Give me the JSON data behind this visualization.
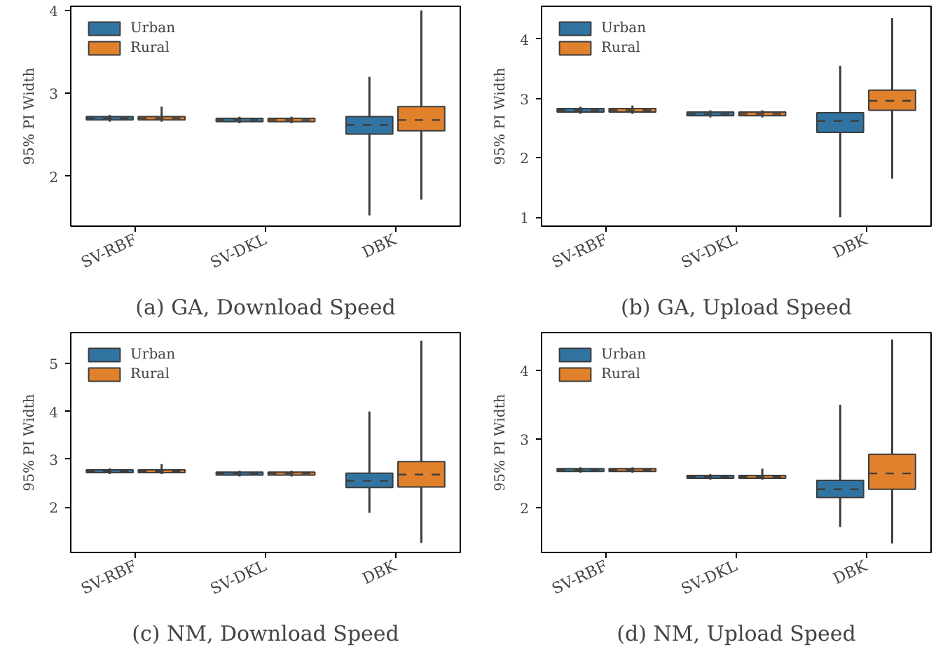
{
  "chart_data": [
    {
      "type": "box",
      "title": "(a) GA, Download Speed",
      "ylabel": "95% PI Width",
      "categories": [
        "SV-RBF",
        "SV-DKL",
        "DBK"
      ],
      "ylim": [
        1.4,
        4.05
      ],
      "yticks": [
        2,
        3,
        4
      ],
      "legend": "top left",
      "grid": false,
      "series": [
        {
          "name": "Urban",
          "color": "#3274a1",
          "boxes": [
            {
              "low": 2.66,
              "q1": 2.68,
              "median": 2.7,
              "q3": 2.72,
              "high": 2.74
            },
            {
              "low": 2.64,
              "q1": 2.66,
              "median": 2.68,
              "q3": 2.7,
              "high": 2.72
            },
            {
              "low": 1.53,
              "q1": 2.51,
              "median": 2.62,
              "q3": 2.72,
              "high": 3.2
            }
          ]
        },
        {
          "name": "Rural",
          "color": "#e1812c",
          "boxes": [
            {
              "low": 2.66,
              "q1": 2.68,
              "median": 2.7,
              "q3": 2.72,
              "high": 2.84
            },
            {
              "low": 2.64,
              "q1": 2.66,
              "median": 2.68,
              "q3": 2.7,
              "high": 2.72
            },
            {
              "low": 1.72,
              "q1": 2.55,
              "median": 2.68,
              "q3": 2.84,
              "high": 4.0
            }
          ]
        }
      ]
    },
    {
      "type": "box",
      "title": "(b) GA, Upload Speed",
      "ylabel": "95% PI Width",
      "categories": [
        "SV-RBF",
        "SV-DKL",
        "DBK"
      ],
      "ylim": [
        0.85,
        4.55
      ],
      "yticks": [
        1,
        2,
        3,
        4
      ],
      "legend": "top left",
      "grid": false,
      "series": [
        {
          "name": "Urban",
          "color": "#3274a1",
          "boxes": [
            {
              "low": 2.74,
              "q1": 2.77,
              "median": 2.8,
              "q3": 2.83,
              "high": 2.86
            },
            {
              "low": 2.68,
              "q1": 2.71,
              "median": 2.74,
              "q3": 2.77,
              "high": 2.8
            },
            {
              "low": 1.0,
              "q1": 2.43,
              "median": 2.62,
              "q3": 2.76,
              "high": 3.55
            }
          ]
        },
        {
          "name": "Rural",
          "color": "#e1812c",
          "boxes": [
            {
              "low": 2.74,
              "q1": 2.77,
              "median": 2.8,
              "q3": 2.83,
              "high": 2.88
            },
            {
              "low": 2.68,
              "q1": 2.71,
              "median": 2.74,
              "q3": 2.77,
              "high": 2.8
            },
            {
              "low": 1.65,
              "q1": 2.8,
              "median": 2.96,
              "q3": 3.14,
              "high": 4.35
            }
          ]
        }
      ]
    },
    {
      "type": "box",
      "title": "(c) NM, Download Speed",
      "ylabel": "95% PI Width",
      "categories": [
        "SV-RBF",
        "SV-DKL",
        "DBK"
      ],
      "ylim": [
        1.05,
        5.65
      ],
      "yticks": [
        2,
        3,
        4,
        5
      ],
      "legend": "top left",
      "grid": false,
      "series": [
        {
          "name": "Urban",
          "color": "#3274a1",
          "boxes": [
            {
              "low": 2.69,
              "q1": 2.72,
              "median": 2.75,
              "q3": 2.78,
              "high": 2.81
            },
            {
              "low": 2.64,
              "q1": 2.67,
              "median": 2.7,
              "q3": 2.73,
              "high": 2.76
            },
            {
              "low": 1.88,
              "q1": 2.41,
              "median": 2.55,
              "q3": 2.71,
              "high": 4.0
            }
          ]
        },
        {
          "name": "Rural",
          "color": "#e1812c",
          "boxes": [
            {
              "low": 2.69,
              "q1": 2.72,
              "median": 2.75,
              "q3": 2.78,
              "high": 2.9
            },
            {
              "low": 2.64,
              "q1": 2.67,
              "median": 2.7,
              "q3": 2.73,
              "high": 2.76
            },
            {
              "low": 1.25,
              "q1": 2.42,
              "median": 2.68,
              "q3": 2.95,
              "high": 5.48
            }
          ]
        }
      ]
    },
    {
      "type": "box",
      "title": "(d) NM, Upload Speed",
      "ylabel": "95% PI Width",
      "categories": [
        "SV-RBF",
        "SV-DKL",
        "DBK"
      ],
      "ylim": [
        1.35,
        4.55
      ],
      "yticks": [
        2,
        3,
        4
      ],
      "legend": "top left",
      "grid": false,
      "series": [
        {
          "name": "Urban",
          "color": "#3274a1",
          "boxes": [
            {
              "low": 2.51,
              "q1": 2.53,
              "median": 2.55,
              "q3": 2.57,
              "high": 2.59
            },
            {
              "low": 2.41,
              "q1": 2.43,
              "median": 2.45,
              "q3": 2.47,
              "high": 2.49
            },
            {
              "low": 1.72,
              "q1": 2.15,
              "median": 2.27,
              "q3": 2.4,
              "high": 3.5
            }
          ]
        },
        {
          "name": "Rural",
          "color": "#e1812c",
          "boxes": [
            {
              "low": 2.51,
              "q1": 2.53,
              "median": 2.55,
              "q3": 2.57,
              "high": 2.59
            },
            {
              "low": 2.41,
              "q1": 2.43,
              "median": 2.45,
              "q3": 2.47,
              "high": 2.57
            },
            {
              "low": 1.48,
              "q1": 2.27,
              "median": 2.5,
              "q3": 2.78,
              "high": 4.45
            }
          ]
        }
      ]
    }
  ]
}
